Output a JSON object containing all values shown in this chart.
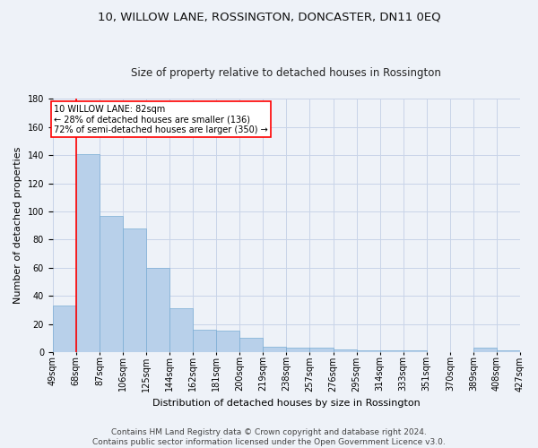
{
  "title": "10, WILLOW LANE, ROSSINGTON, DONCASTER, DN11 0EQ",
  "subtitle": "Size of property relative to detached houses in Rossington",
  "xlabel": "Distribution of detached houses by size in Rossington",
  "ylabel": "Number of detached properties",
  "bar_values": [
    33,
    141,
    97,
    88,
    60,
    31,
    16,
    15,
    10,
    4,
    3,
    3,
    2,
    1,
    1,
    1,
    0,
    0,
    3,
    1
  ],
  "x_labels": [
    "49sqm",
    "68sqm",
    "87sqm",
    "106sqm",
    "125sqm",
    "144sqm",
    "162sqm",
    "181sqm",
    "200sqm",
    "219sqm",
    "238sqm",
    "257sqm",
    "276sqm",
    "295sqm",
    "314sqm",
    "333sqm",
    "351sqm",
    "370sqm",
    "389sqm",
    "408sqm",
    "427sqm"
  ],
  "bar_color": "#b8d0ea",
  "bar_edge_color": "#7aadd4",
  "grid_color": "#c8d4e8",
  "background_color": "#eef2f8",
  "vline_color": "red",
  "annotation_text": "10 WILLOW LANE: 82sqm\n← 28% of detached houses are smaller (136)\n72% of semi-detached houses are larger (350) →",
  "annotation_box_color": "white",
  "annotation_box_edge": "red",
  "ylim": [
    0,
    180
  ],
  "yticks": [
    0,
    20,
    40,
    60,
    80,
    100,
    120,
    140,
    160,
    180
  ],
  "footer_text": "Contains HM Land Registry data © Crown copyright and database right 2024.\nContains public sector information licensed under the Open Government Licence v3.0.",
  "title_fontsize": 9.5,
  "subtitle_fontsize": 8.5,
  "xlabel_fontsize": 8,
  "ylabel_fontsize": 8,
  "tick_fontsize": 7,
  "footer_fontsize": 6.5,
  "annotation_fontsize": 7
}
